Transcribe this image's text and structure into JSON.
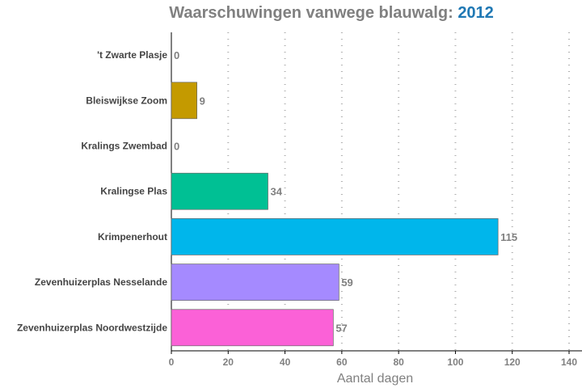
{
  "chart_data": {
    "type": "bar",
    "orientation": "horizontal",
    "title": "Waarschuwingen vanwege blauwalg:",
    "title_highlight": "2012",
    "title_highlight_color": "#1f78b4",
    "xlabel": "Aantal dagen",
    "ylabel": "",
    "xlim": [
      0,
      140
    ],
    "xticks": [
      0,
      20,
      40,
      60,
      80,
      100,
      120,
      140
    ],
    "grid": "vertical-dotted",
    "categories": [
      "'t Zwarte Plasje",
      "Bleiswijkse Zoom",
      "Kralings Zwembad",
      "Kralingse Plas",
      "Krimpenerhout",
      "Zevenhuizerplas Nesselande",
      "Zevenhuizerplas Noordwestzijde"
    ],
    "values": [
      0,
      9,
      0,
      34,
      115,
      59,
      57
    ],
    "colors": [
      "#f8766d",
      "#c49a00",
      "#53b400",
      "#00c094",
      "#00b6eb",
      "#a58aff",
      "#fb61d7"
    ]
  }
}
